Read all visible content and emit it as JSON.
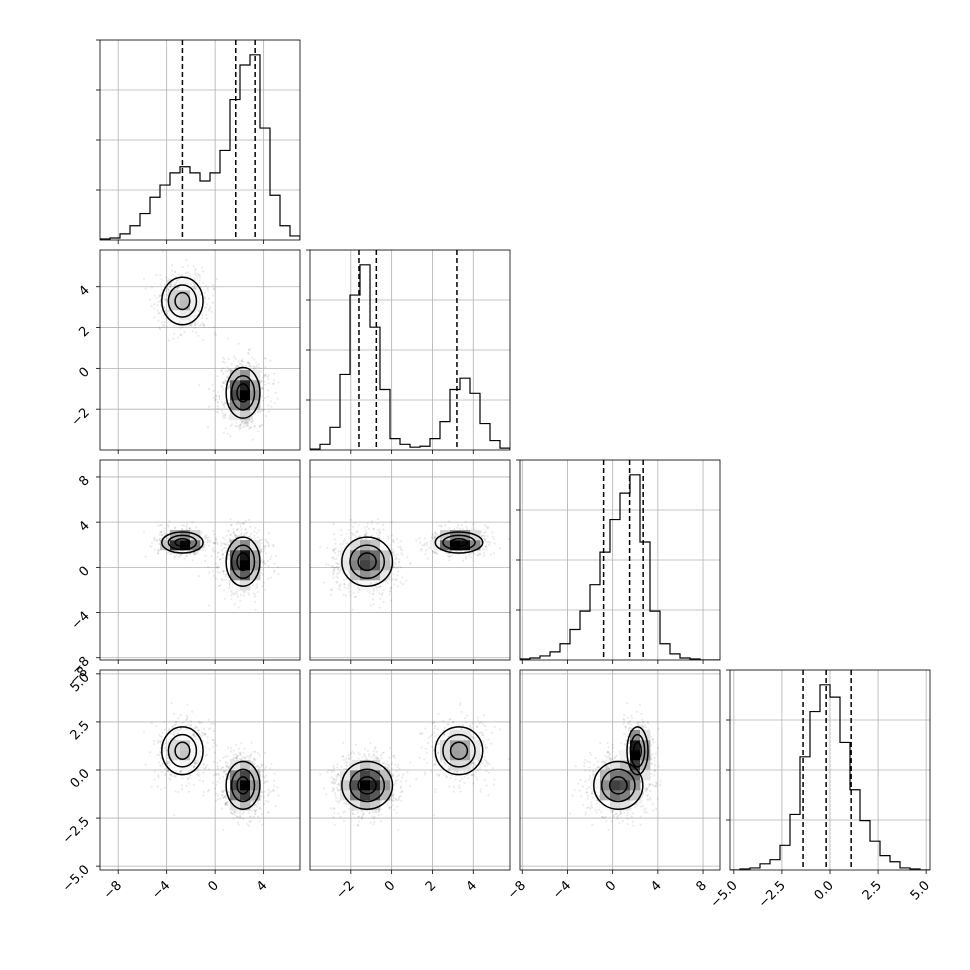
{
  "chart_data": {
    "type": "corner",
    "title": "",
    "n_params": 4,
    "param_labels": [
      "",
      "",
      "",
      ""
    ],
    "ranges": [
      [
        -9.5,
        7.0
      ],
      [
        -4.0,
        5.8
      ],
      [
        -8.2,
        9.5
      ],
      [
        -5.2,
        5.2
      ]
    ],
    "ticks": [
      [
        -8,
        -4,
        0,
        4
      ],
      [
        -2,
        0,
        2,
        4
      ],
      [
        -8,
        -4,
        0,
        4,
        8
      ],
      [
        -5.0,
        -2.5,
        0.0,
        2.5,
        5.0
      ]
    ],
    "tick_labels": [
      [
        "−8",
        "−4",
        "0",
        "4"
      ],
      [
        "−2",
        "0",
        "2",
        "4"
      ],
      [
        "−8",
        "−4",
        "0",
        "4",
        "8"
      ],
      [
        "−5.0",
        "−2.5",
        "0.0",
        "2.5",
        "5.0"
      ]
    ],
    "corner_overlap_label": "−8",
    "grid": true,
    "histograms": [
      {
        "param": 0,
        "bins": [
          -9.5,
          -8.675,
          -7.85,
          -7.025,
          -6.2,
          -5.375,
          -4.55,
          -3.725,
          -2.9,
          -2.075,
          -1.25,
          -0.425,
          0.4,
          1.225,
          2.05,
          2.875,
          3.7,
          4.525,
          5.35,
          6.175,
          7.0
        ],
        "counts": [
          0.005,
          0.01,
          0.03,
          0.07,
          0.13,
          0.21,
          0.27,
          0.33,
          0.36,
          0.33,
          0.29,
          0.33,
          0.44,
          0.69,
          0.86,
          0.91,
          0.55,
          0.22,
          0.07,
          0.02
        ],
        "quantiles": [
          -2.7,
          1.7,
          3.3
        ]
      },
      {
        "param": 1,
        "bins": [
          -4.0,
          -3.51,
          -3.02,
          -2.53,
          -2.04,
          -1.55,
          -1.06,
          -0.57,
          -0.08,
          0.41,
          0.9,
          1.39,
          1.88,
          2.37,
          2.86,
          3.35,
          3.84,
          4.33,
          4.82,
          5.31,
          5.8
        ],
        "counts": [
          0.005,
          0.03,
          0.12,
          0.4,
          0.82,
          0.98,
          0.65,
          0.32,
          0.06,
          0.03,
          0.015,
          0.02,
          0.06,
          0.15,
          0.32,
          0.38,
          0.3,
          0.14,
          0.05,
          0.01
        ],
        "quantiles": [
          -1.6,
          -0.75,
          3.2
        ]
      },
      {
        "param": 2,
        "bins": [
          -8.2,
          -7.315,
          -6.43,
          -5.545,
          -4.66,
          -3.775,
          -2.89,
          -2.005,
          -1.12,
          -0.235,
          0.65,
          1.535,
          2.42,
          3.305,
          4.19,
          5.075,
          5.96,
          6.845,
          7.73,
          8.615,
          9.5
        ],
        "counts": [
          0.005,
          0.01,
          0.02,
          0.04,
          0.08,
          0.15,
          0.24,
          0.37,
          0.53,
          0.69,
          0.82,
          0.91,
          0.58,
          0.24,
          0.08,
          0.03,
          0.01,
          0.005,
          0.0,
          0.0
        ],
        "quantiles": [
          -0.8,
          1.5,
          2.7
        ]
      },
      {
        "param": 3,
        "bins": [
          -5.2,
          -4.68,
          -4.16,
          -3.64,
          -3.12,
          -2.6,
          -2.08,
          -1.56,
          -1.04,
          -0.52,
          0.0,
          0.52,
          1.04,
          1.56,
          2.08,
          2.6,
          3.12,
          3.64,
          4.16,
          4.68,
          5.2
        ],
        "counts": [
          0.0,
          0.005,
          0.01,
          0.03,
          0.05,
          0.12,
          0.27,
          0.55,
          0.77,
          0.9,
          0.84,
          0.62,
          0.39,
          0.24,
          0.14,
          0.07,
          0.04,
          0.01,
          0.005,
          0.0
        ],
        "quantiles": [
          -1.4,
          -0.2,
          1.1
        ]
      }
    ],
    "modes": [
      {
        "mean": [
          -2.7,
          3.3,
          2.2,
          1.0
        ],
        "sigma": [
          1.1,
          0.75,
          0.6,
          0.8
        ],
        "weight": 0.35
      },
      {
        "mean": [
          2.3,
          -1.2,
          0.5,
          -0.8
        ],
        "sigma": [
          0.9,
          0.8,
          1.4,
          0.8
        ],
        "weight": 0.65
      }
    ]
  }
}
